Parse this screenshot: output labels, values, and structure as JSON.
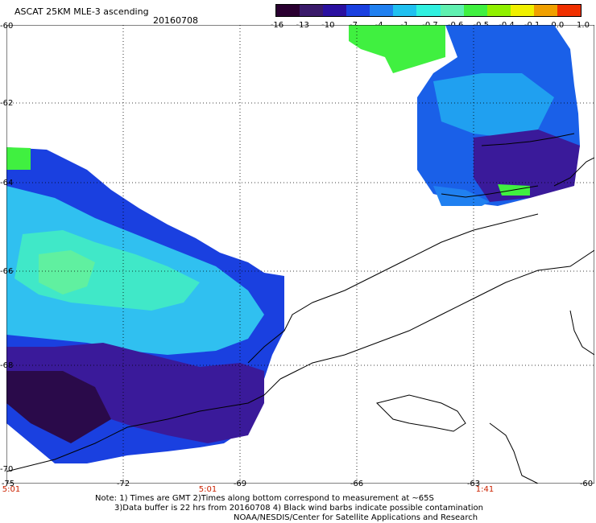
{
  "header": {
    "title": "ASCAT 25KM MLE-3 ascending",
    "date": "20160708"
  },
  "colorbar": {
    "labels": [
      "-16",
      "-13",
      "-10",
      "-7",
      "-4",
      "-1",
      "-0.7",
      "-0.6",
      "-0.5",
      "-0.4",
      "-0.1",
      "0.0",
      "1.0"
    ],
    "colors": [
      "#2a0030",
      "#3a1a6a",
      "#2a10a0",
      "#1a40e0",
      "#2080f0",
      "#20c0f0",
      "#30f0e0",
      "#60f0b0",
      "#40f040",
      "#90f000",
      "#f0f000",
      "#f0a000",
      "#f03000"
    ]
  },
  "axes": {
    "lat_labels": [
      "-60",
      "-62",
      "-64",
      "-66",
      "-68",
      "-70"
    ],
    "lon_labels": [
      "-75",
      "-72",
      "-69",
      "-66",
      "-63",
      "-60"
    ],
    "time_labels": [
      "5:01",
      "5:01",
      "1:41"
    ]
  },
  "notes": {
    "line1": "Note: 1) Times are GMT 2)Times along bottom correspond to measurement at ~65S",
    "line2": "3)Data buffer is 22 hrs from 20160708 4) Black wind barbs indicate possible contamination",
    "line3": "NOAA/NESDIS/Center for Satellite Applications and Research"
  }
}
